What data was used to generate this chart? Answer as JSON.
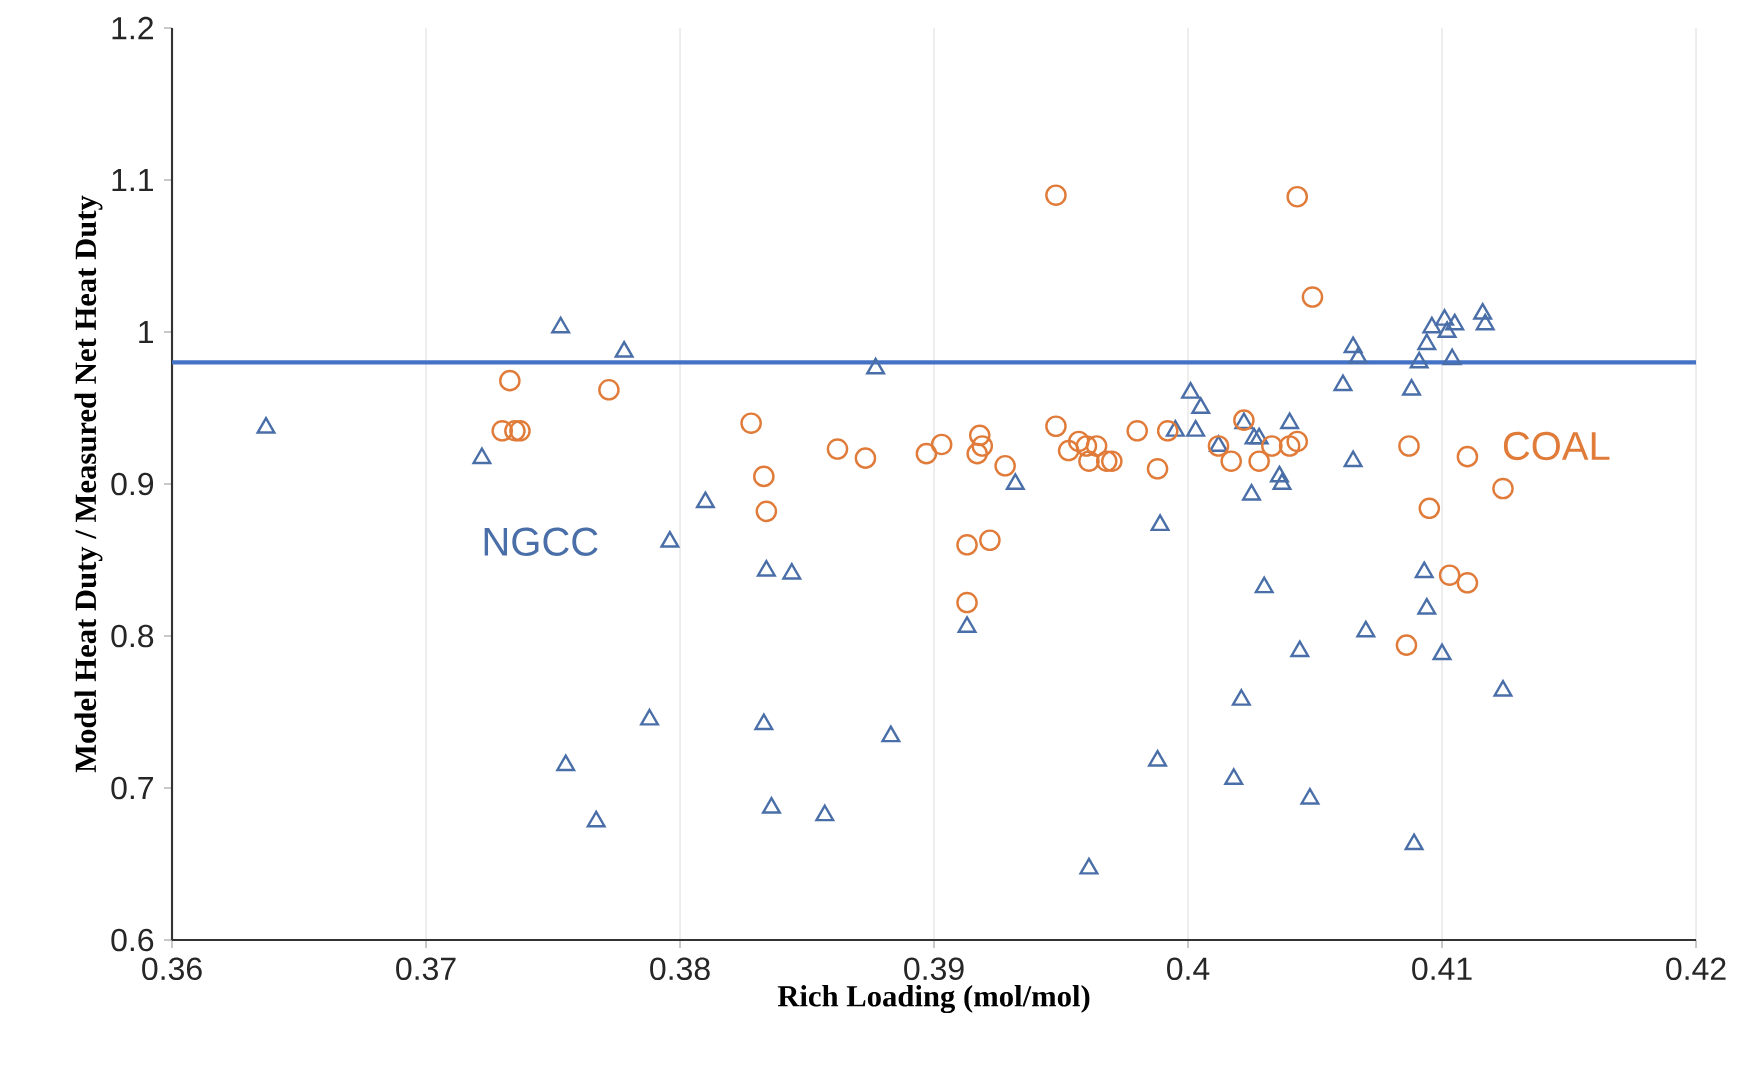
{
  "chart_data": {
    "type": "scatter",
    "xlabel": "Rich Loading (mol/mol)",
    "ylabel": "Model Heat Duty / Measured Net Heat Duty",
    "xlim": [
      0.36,
      0.42
    ],
    "xticks": [
      0.36,
      0.37,
      0.38,
      0.39,
      0.4,
      0.41,
      0.42
    ],
    "ylim": [
      0.6,
      1.2
    ],
    "yticks": [
      0.6,
      0.7,
      0.8,
      0.9,
      1,
      1.1,
      1.2
    ],
    "grid": "x",
    "legend": false,
    "ref_lines": [
      {
        "axis": "y",
        "value": 0.98,
        "color": "#4472c4"
      }
    ],
    "series": [
      {
        "name": "NGCC",
        "color": "#4a6fa8",
        "marker": "triangle",
        "x": [
          0.3637,
          0.3722,
          0.3753,
          0.3778,
          0.3755,
          0.3767,
          0.3788,
          0.3796,
          0.381,
          0.3833,
          0.3834,
          0.3844,
          0.3836,
          0.3857,
          0.3877,
          0.3883,
          0.3913,
          0.3932,
          0.3961,
          0.3989,
          0.3988,
          0.3995,
          0.4001,
          0.4005,
          0.4003,
          0.4012,
          0.4018,
          0.4021,
          0.4025,
          0.4022,
          0.4026,
          0.4028,
          0.403,
          0.4036,
          0.4037,
          0.404,
          0.4044,
          0.4048,
          0.4061,
          0.4065,
          0.4067,
          0.4065,
          0.407,
          0.4088,
          0.4089,
          0.4091,
          0.4093,
          0.4094,
          0.4094,
          0.4096,
          0.41,
          0.4101,
          0.4102,
          0.4104,
          0.4105,
          0.4116,
          0.4117,
          0.4124
        ],
        "values": [
          0.937,
          0.917,
          1.003,
          0.987,
          0.715,
          0.678,
          0.745,
          0.862,
          0.888,
          0.742,
          0.843,
          0.841,
          0.687,
          0.682,
          0.976,
          0.734,
          0.806,
          0.9,
          0.647,
          0.873,
          0.718,
          0.935,
          0.96,
          0.95,
          0.935,
          0.925,
          0.706,
          0.758,
          0.893,
          0.94,
          0.93,
          0.93,
          0.832,
          0.905,
          0.9,
          0.94,
          0.79,
          0.693,
          0.965,
          0.99,
          0.983,
          0.915,
          0.803,
          0.962,
          0.663,
          0.98,
          0.842,
          0.818,
          0.992,
          1.003,
          0.788,
          1.008,
          1.0,
          0.982,
          1.005,
          1.012,
          1.005,
          0.764
        ]
      },
      {
        "name": "COAL",
        "color": "#e07b39",
        "marker": "circle",
        "x": [
          0.3733,
          0.373,
          0.3735,
          0.3737,
          0.3772,
          0.3828,
          0.3833,
          0.3834,
          0.3862,
          0.3873,
          0.3897,
          0.3903,
          0.3913,
          0.3913,
          0.3917,
          0.3918,
          0.3919,
          0.3922,
          0.3928,
          0.3948,
          0.3948,
          0.3953,
          0.3957,
          0.396,
          0.3961,
          0.3964,
          0.3968,
          0.397,
          0.398,
          0.3988,
          0.3992,
          0.4012,
          0.4017,
          0.4022,
          0.4028,
          0.4033,
          0.404,
          0.4043,
          0.4043,
          0.4049,
          0.4087,
          0.4095,
          0.4103,
          0.411,
          0.411,
          0.4086,
          0.4124
        ],
        "values": [
          0.968,
          0.935,
          0.935,
          0.935,
          0.962,
          0.94,
          0.905,
          0.882,
          0.923,
          0.917,
          0.92,
          0.926,
          0.822,
          0.86,
          0.92,
          0.932,
          0.925,
          0.863,
          0.912,
          1.09,
          0.938,
          0.922,
          0.928,
          0.925,
          0.915,
          0.925,
          0.915,
          0.915,
          0.935,
          0.91,
          0.935,
          0.925,
          0.915,
          0.942,
          0.915,
          0.925,
          0.925,
          1.089,
          0.928,
          1.023,
          0.925,
          0.884,
          0.84,
          0.918,
          0.835,
          0.794,
          0.897
        ]
      }
    ]
  }
}
